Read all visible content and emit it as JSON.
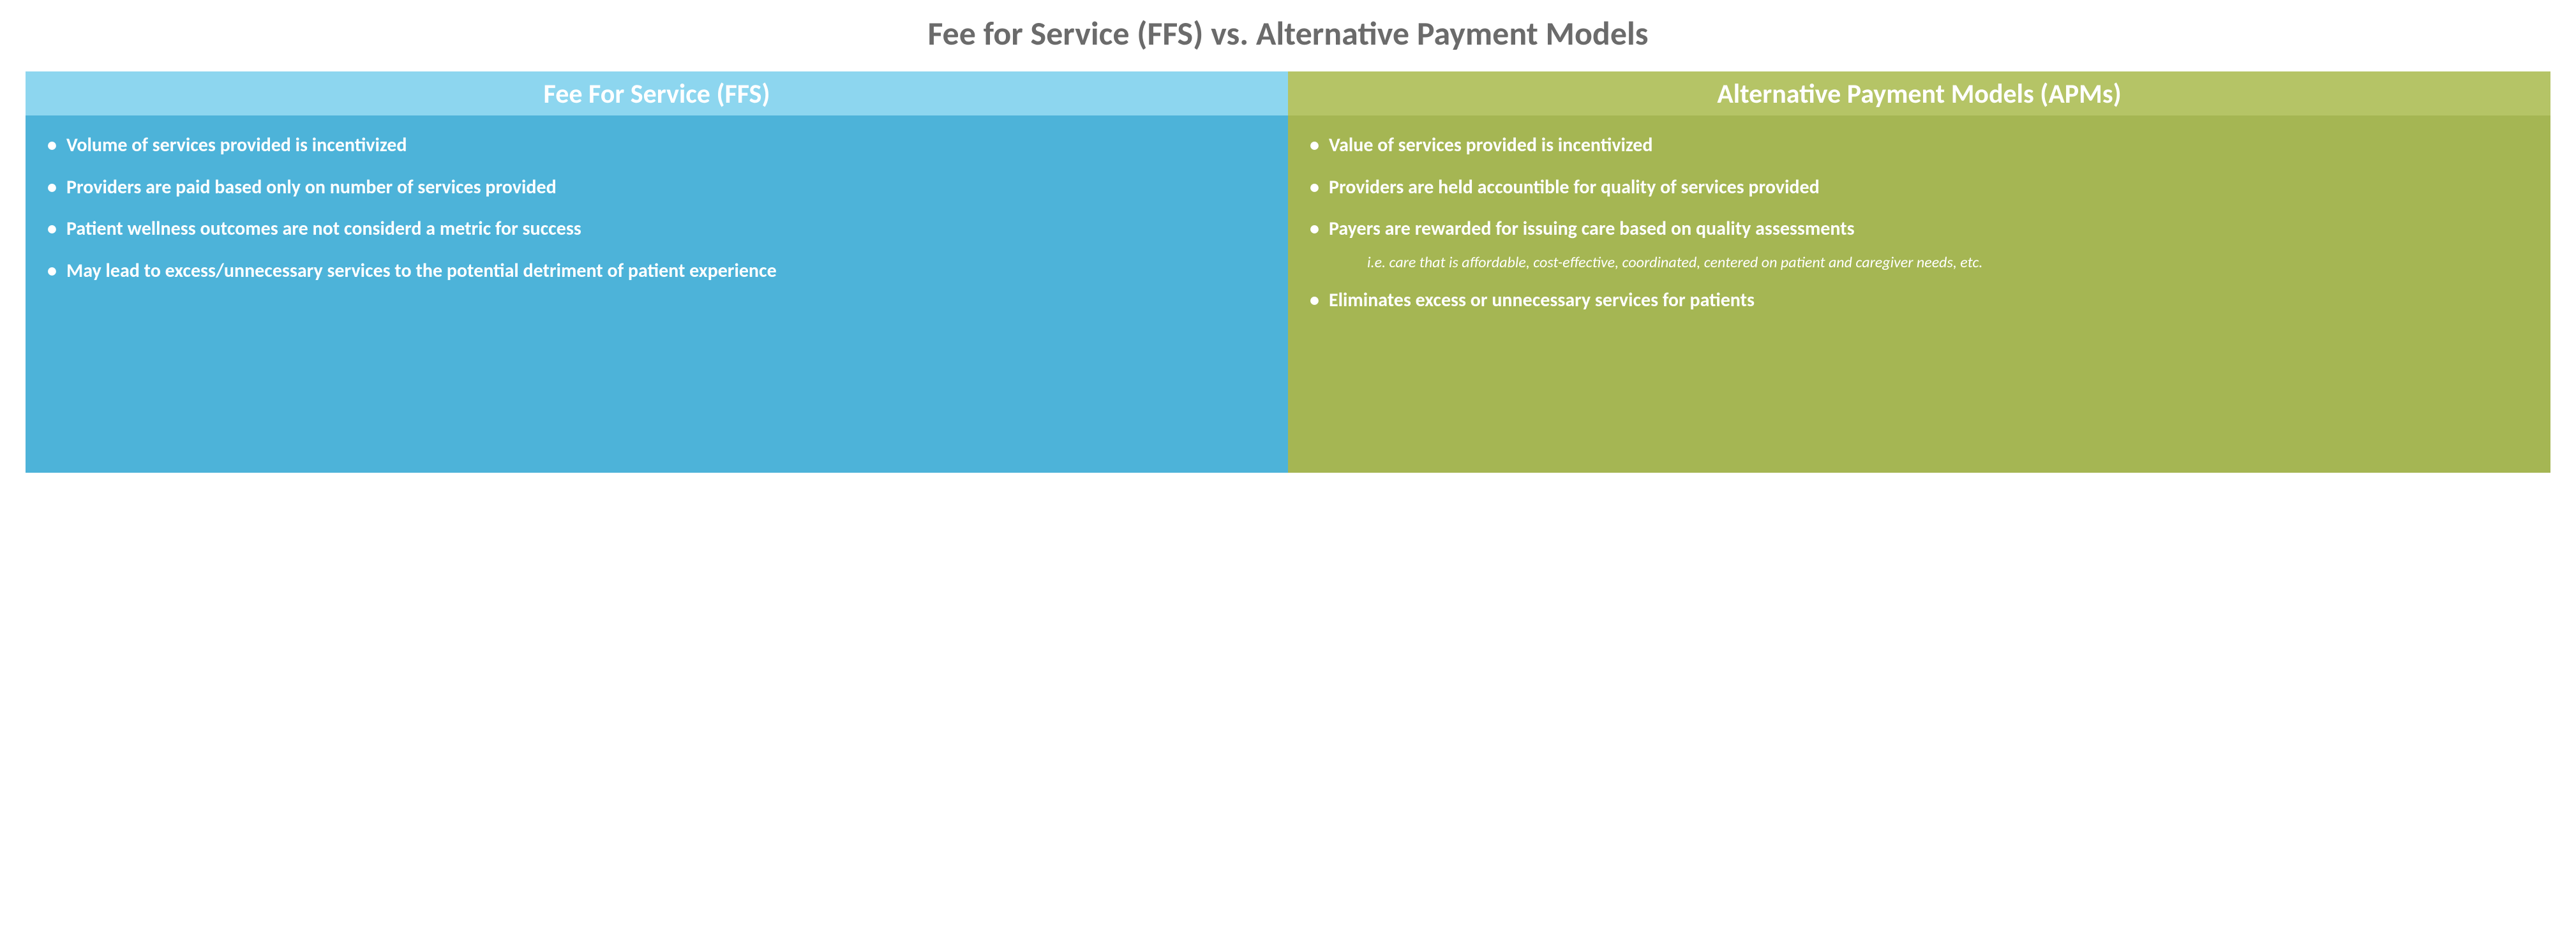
{
  "title": "Fee for Service (FFS) vs. Alternative Payment Models",
  "colors": {
    "title_text": "#6b6b6b",
    "left_header_bg": "#8dd6ef",
    "left_body_bg": "#4db3d9",
    "right_header_bg": "#b5c466",
    "right_body_bg": "#a5b653",
    "text": "#ffffff"
  },
  "left": {
    "header": "Fee For Service (FFS)",
    "bullets": [
      "Volume of services provided is incentivized",
      "Providers are paid based only on number of services provided",
      "Patient wellness outcomes are not considerd a metric for success",
      "May lead to excess/unnecessary services to the potential detriment of patient experience"
    ]
  },
  "right": {
    "header": "Alternative Payment Models (APMs)",
    "bullets": [
      "Value of services provided is incentivized",
      "Providers are held accountible for quality of services provided",
      "Payers are rewarded for issuing care based on quality assessments",
      "Eliminates excess or unnecessary services for patients"
    ],
    "subnote": "i.e. care that is affordable, cost-effective, coordinated, centered on patient and caregiver needs, etc."
  }
}
